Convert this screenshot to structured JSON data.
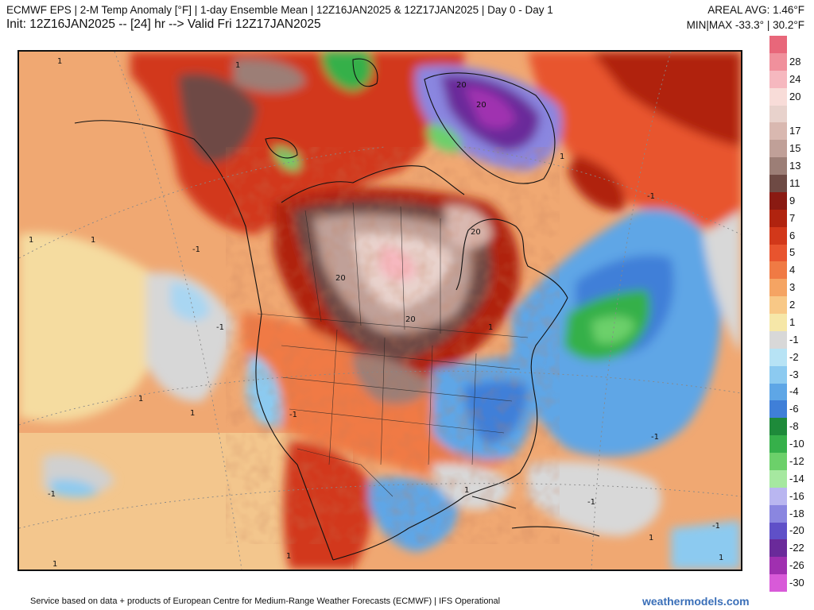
{
  "header": {
    "title_line": "ECMWF EPS | 2-M Temp Anomaly [°F] | 1-day Ensemble Mean | 12Z16JAN2025 & 12Z17JAN2025 | Day 0 - Day 1",
    "init_line": "Init: 12Z16JAN2025 -- [24] hr --> Valid Fri 12Z17JAN2025",
    "areal_avg": "AREAL AVG: 1.46°F",
    "min_max": "MIN|MAX -33.3° | 30.2°F"
  },
  "map": {
    "region": "North America",
    "contour_labels": [
      "20",
      "20",
      "20",
      "20",
      "20",
      "-1",
      "-1",
      "-1",
      "-1",
      "-1",
      "-1",
      "-1",
      "-1",
      "1",
      "1",
      "1",
      "1",
      "1",
      "1",
      "1",
      "1",
      "1",
      "1",
      "1",
      "1",
      "1"
    ]
  },
  "legend": {
    "entries": [
      {
        "label": "",
        "color": "#e8677a"
      },
      {
        "label": "28",
        "color": "#f0909c"
      },
      {
        "label": "24",
        "color": "#f6b8bf"
      },
      {
        "label": "20",
        "color": "#f8dcd8"
      },
      {
        "label": "",
        "color": "#e8d2cc"
      },
      {
        "label": "17",
        "color": "#d9b8b0"
      },
      {
        "label": "15",
        "color": "#c0a098"
      },
      {
        "label": "13",
        "color": "#9c7e76"
      },
      {
        "label": "11",
        "color": "#6e4a44"
      },
      {
        "label": "9",
        "color": "#8a1a12"
      },
      {
        "label": "7",
        "color": "#b0230f"
      },
      {
        "label": "6",
        "color": "#d2381a"
      },
      {
        "label": "5",
        "color": "#e8542e"
      },
      {
        "label": "4",
        "color": "#f07a44"
      },
      {
        "label": "3",
        "color": "#f5a463"
      },
      {
        "label": "2",
        "color": "#f8c886"
      },
      {
        "label": "1",
        "color": "#f6e7a8"
      },
      {
        "label": "-1",
        "color": "#d8d8d8"
      },
      {
        "label": "-2",
        "color": "#b7e3f5"
      },
      {
        "label": "-3",
        "color": "#8ccaf0"
      },
      {
        "label": "-4",
        "color": "#5ea6e6"
      },
      {
        "label": "-6",
        "color": "#3f7fd8"
      },
      {
        "label": "-8",
        "color": "#1e8a3a"
      },
      {
        "label": "-10",
        "color": "#36b04a"
      },
      {
        "label": "-12",
        "color": "#6cd06a"
      },
      {
        "label": "-14",
        "color": "#a6e8a0"
      },
      {
        "label": "-16",
        "color": "#b9b6f0"
      },
      {
        "label": "-18",
        "color": "#8a86e0"
      },
      {
        "label": "-20",
        "color": "#5f50c8"
      },
      {
        "label": "-22",
        "color": "#6a2a9a"
      },
      {
        "label": "-26",
        "color": "#a030b0"
      },
      {
        "label": "-30",
        "color": "#d85ad8"
      }
    ]
  },
  "footer": {
    "credit": "Service based on data + products of European Centre for Medium-Range Weather Forecasts (ECMWF) | IFS Operational",
    "brand": "weathermodels.com"
  }
}
